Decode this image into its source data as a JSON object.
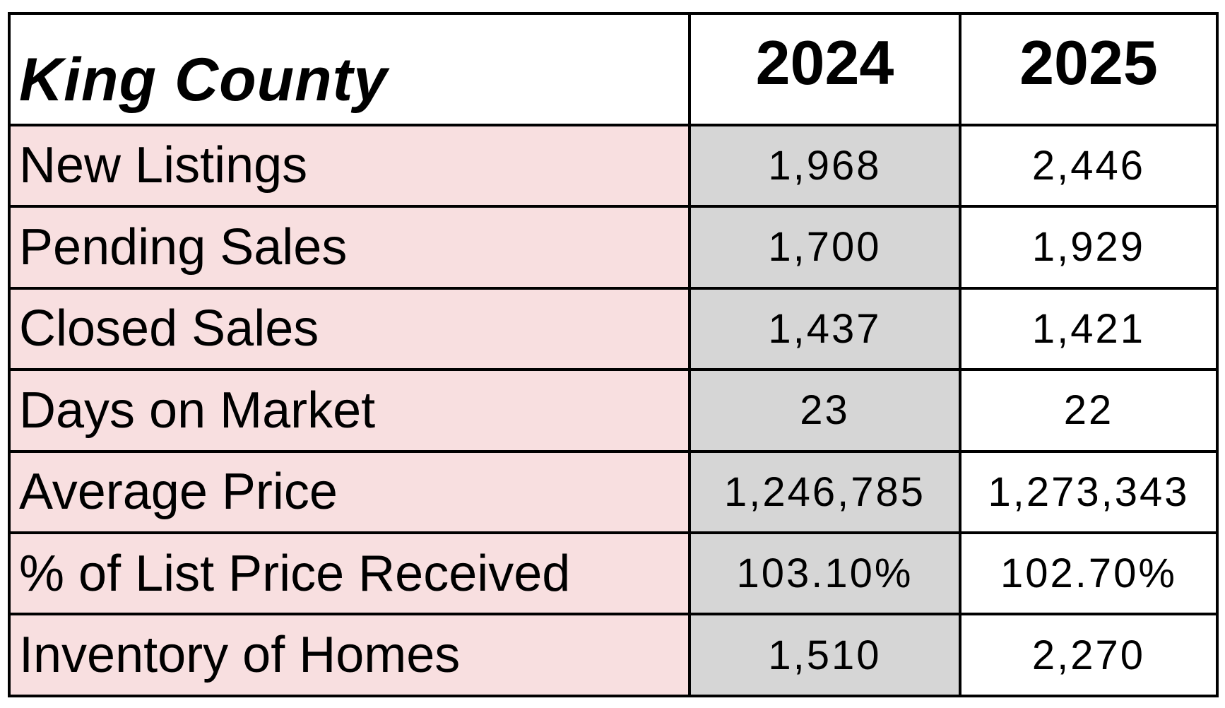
{
  "table": {
    "region": "King County",
    "years": [
      "2024",
      "2025"
    ],
    "rows": [
      {
        "label": "New Listings",
        "y2024": "1,968",
        "y2025": "2,446"
      },
      {
        "label": "Pending Sales",
        "y2024": "1,700",
        "y2025": "1,929"
      },
      {
        "label": "Closed Sales",
        "y2024": "1,437",
        "y2025": "1,421"
      },
      {
        "label": "Days on Market",
        "y2024": "23",
        "y2025": "22"
      },
      {
        "label": "Average Price",
        "y2024": "1,246,785",
        "y2025": "1,273,343"
      },
      {
        "label": "% of List Price Received",
        "y2024": "103.10%",
        "y2025": "102.70%"
      },
      {
        "label": "Inventory of Homes",
        "y2024": "1,510",
        "y2025": "2,270"
      }
    ]
  },
  "colors": {
    "label_background": "#f8dfe0",
    "year2024_background": "#d6d6d6",
    "year2025_background": "#ffffff",
    "border": "#000000"
  }
}
